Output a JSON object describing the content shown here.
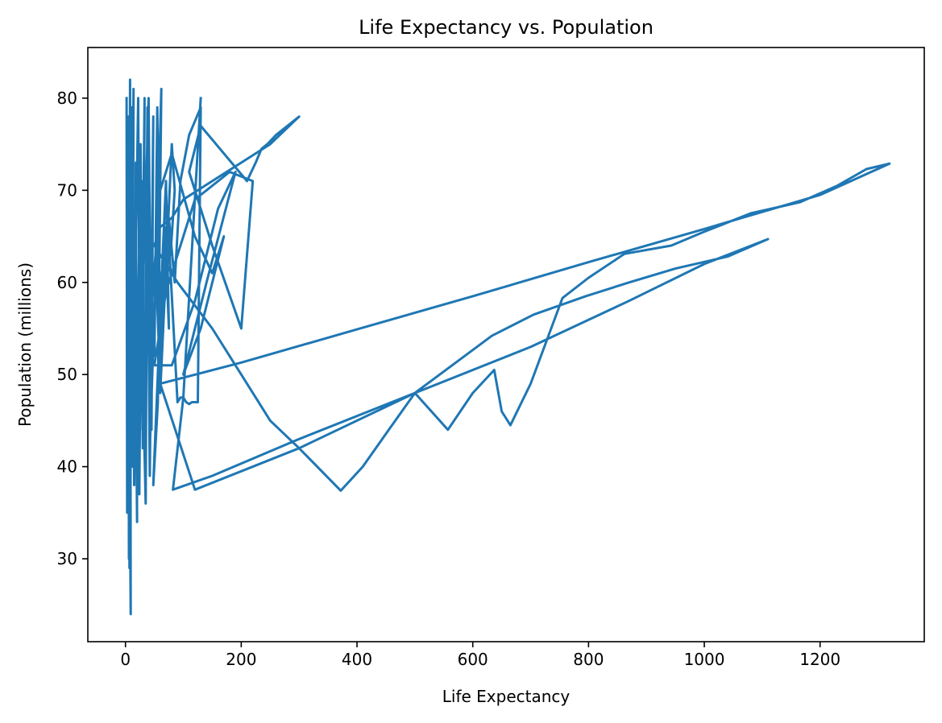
{
  "chart_data": {
    "type": "line",
    "title": "Life Expectancy vs. Population",
    "xlabel": "Life Expectancy",
    "ylabel": "Population (millions)",
    "xlim": [
      -65,
      1380
    ],
    "ylim": [
      21,
      85.5
    ],
    "xticks": [
      0,
      200,
      400,
      600,
      800,
      1000,
      1200
    ],
    "yticks": [
      30,
      40,
      50,
      60,
      70,
      80
    ],
    "grid": false,
    "legend": "none",
    "colors": {
      "line": "#1f77b4"
    },
    "series": [
      {
        "x": [
          2,
          3,
          5,
          6,
          8,
          9,
          4,
          7,
          10,
          12,
          14,
          8,
          6,
          3,
          5,
          9,
          11,
          15,
          18,
          20,
          16,
          12,
          10,
          14,
          22,
          25,
          28,
          24,
          18,
          20,
          26,
          30,
          33,
          29,
          24,
          35,
          38,
          34,
          30,
          27,
          40,
          45,
          48,
          42,
          38,
          50,
          55,
          60,
          52,
          46,
          42,
          58,
          62,
          56,
          48,
          65,
          70,
          75,
          68,
          60,
          80,
          85,
          78,
          72,
          90,
          95,
          100,
          105,
          110,
          115,
          125,
          130,
          110,
          95,
          85,
          75,
          65,
          55,
          60,
          80,
          120,
          150,
          170,
          130,
          100,
          140,
          190,
          160,
          120,
          80,
          60,
          50,
          70,
          120,
          180,
          220,
          200,
          150,
          110,
          130,
          210,
          225,
          235,
          245,
          260,
          280,
          300,
          250,
          200,
          150,
          100,
          80,
          60,
          50,
          90,
          150,
          200,
          250,
          300,
          372,
          410,
          455,
          500,
          557,
          600,
          637,
          650,
          665,
          700,
          755,
          800,
          862,
          943,
          1000,
          1080,
          1165,
          1230,
          1280,
          1320,
          1200,
          1000,
          800,
          600,
          400,
          200,
          60,
          120,
          300,
          500,
          633,
          705,
          795,
          870,
          950,
          1040,
          1110,
          1000,
          870,
          700,
          500,
          300,
          150,
          82,
          100,
          130
        ],
        "y": [
          80,
          35,
          78,
          30,
          82,
          24,
          70,
          29,
          76,
          40,
          81,
          34,
          60,
          50,
          72,
          45,
          79,
          38,
          73,
          34,
          65,
          42,
          77,
          48,
          80,
          44,
          71,
          37,
          58,
          47,
          75,
          42,
          80,
          55,
          67,
          36,
          79,
          45,
          62,
          52,
          80,
          44,
          78,
          39,
          70,
          52,
          79,
          49,
          63,
          58,
          42,
          72,
          81,
          47,
          38,
          64,
          71,
          55,
          66,
          48,
          75,
          70,
          63,
          68,
          47,
          47.5,
          47.5,
          47,
          46.8,
          47,
          47,
          79,
          76,
          71,
          60,
          67,
          62,
          58,
          70,
          74,
          65,
          61,
          65,
          55,
          50,
          60,
          72,
          68,
          58,
          51,
          51,
          51,
          59,
          69,
          72,
          71,
          55,
          64,
          72,
          77,
          71,
          73,
          74.5,
          75,
          76,
          77,
          78,
          75,
          73,
          71,
          69,
          67,
          66,
          64,
          60,
          55,
          50,
          45,
          42,
          37.4,
          40,
          44,
          48,
          44,
          48,
          50.5,
          46,
          44.5,
          49,
          58.3,
          60.5,
          63.1,
          64,
          65.5,
          67.5,
          68.7,
          70.5,
          72.3,
          72.9,
          69.5,
          65.8,
          62.2,
          58.5,
          54.9,
          51.3,
          49,
          37.5,
          42,
          48,
          54.2,
          56.5,
          58.5,
          60,
          61.5,
          62.8,
          64.7,
          62,
          58,
          53,
          48,
          43,
          39,
          37.5,
          47.5,
          80
        ]
      }
    ]
  }
}
